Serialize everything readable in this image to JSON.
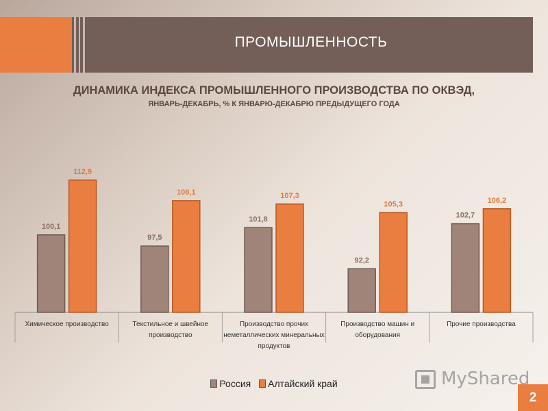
{
  "header": {
    "title": "ПРОМЫШЛЕННОСТЬ"
  },
  "page_number": "2",
  "watermark": {
    "text": "MyShared",
    "icon": "presentation-screen-icon"
  },
  "colors": {
    "russia": "#a08479",
    "altai": "#ea7d40",
    "header": "#735e58",
    "accent": "#ea7d40"
  },
  "chart_data": {
    "type": "bar",
    "title": "ДИНАМИКА ИНДЕКСА ПРОМЫШЛЕННОГО ПРОИЗВОДСТВА ПО ОКВЭД,",
    "subtitle": "ЯНВАРЬ-ДЕКАБРЬ, % К ЯНВАРЮ-ДЕКАБРЮ ПРЕДЫДУЩЕГО ГОДА",
    "categories": [
      [
        "Химическое производство"
      ],
      [
        "Текстильное и швейное",
        "производство"
      ],
      [
        "Производство прочих",
        "неметаллических минеральных",
        "продуктов"
      ],
      [
        "Производство машин и",
        "оборудования"
      ],
      [
        "Прочие производства"
      ]
    ],
    "series": [
      {
        "name": "Россия",
        "values": [
          100.1,
          97.5,
          101.8,
          92.2,
          102.7
        ],
        "labels": [
          "100,1",
          "97,5",
          "101,8",
          "92,2",
          "102,7"
        ]
      },
      {
        "name": "Алтайский край",
        "values": [
          112.9,
          108.1,
          107.3,
          105.3,
          106.2
        ],
        "labels": [
          "112,9",
          "108,1",
          "107,3",
          "105,3",
          "106,2"
        ]
      }
    ],
    "ylim": [
      82,
      114
    ],
    "grid": false,
    "legend": "bottom"
  }
}
